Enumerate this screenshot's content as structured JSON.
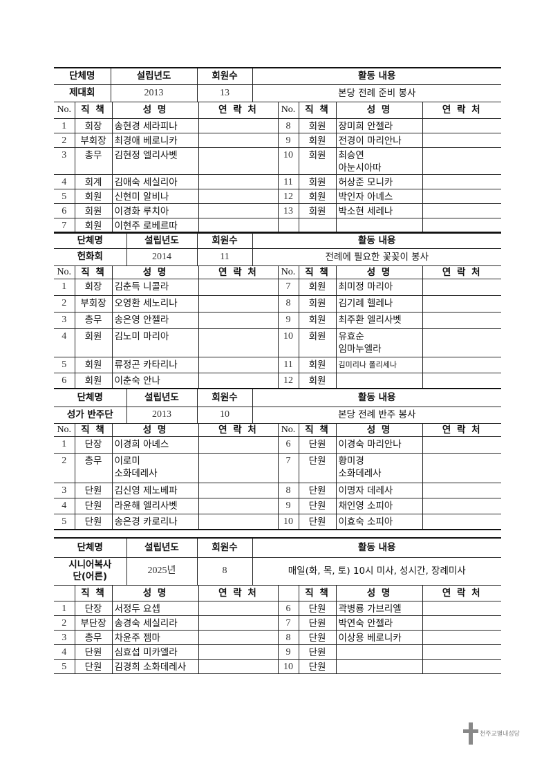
{
  "header_labels": {
    "group": "단체명",
    "founded": "설립년도",
    "members": "회원수",
    "activity": "활동 내용"
  },
  "column_labels": {
    "no": "No.",
    "role": "직 책",
    "name": "성 명",
    "contact": "연 락 처"
  },
  "groups": [
    {
      "name": "제대회",
      "founded": "2013",
      "member_count": "13",
      "activity": "본당 전례 준비 봉사",
      "show_no_header": true,
      "left": [
        {
          "no": "1",
          "role": "회장",
          "name": "송현경 세라피나"
        },
        {
          "no": "2",
          "role": "부회장",
          "name": "최경애 베로니카"
        },
        {
          "no": "3",
          "role": "총무",
          "name": "김현정 엘리사벳"
        },
        {
          "no": "4",
          "role": "회계",
          "name": "김애숙 세실리아"
        },
        {
          "no": "5",
          "role": "회원",
          "name": "신현미 알비나"
        },
        {
          "no": "6",
          "role": "회원",
          "name": "이경화 루치아"
        },
        {
          "no": "7",
          "role": "회원",
          "name": "이현주 로베르따"
        }
      ],
      "right": [
        {
          "no": "8",
          "role": "회원",
          "name": "장미희 안젤라"
        },
        {
          "no": "9",
          "role": "회원",
          "name": "전경이 마리안나"
        },
        {
          "no": "10",
          "role": "회원",
          "name": "최승연\n아눈시아따"
        },
        {
          "no": "11",
          "role": "회원",
          "name": "허상준 모니카"
        },
        {
          "no": "12",
          "role": "회원",
          "name": "박인자 아녜스"
        },
        {
          "no": "13",
          "role": "회원",
          "name": "박소현 세레나"
        },
        {
          "no": "",
          "role": "",
          "name": ""
        }
      ]
    },
    {
      "name": "헌화회",
      "founded": "2014",
      "member_count": "11",
      "activity": "전례에 필요한 꽃꽂이 봉사",
      "show_no_header": true,
      "left": [
        {
          "no": "1",
          "role": "회장",
          "name": "김춘득 니콜라"
        },
        {
          "no": "2",
          "role": "부회장",
          "name": "오영환 세노리나"
        },
        {
          "no": "3",
          "role": "총무",
          "name": "송은영 안젤라"
        },
        {
          "no": "4",
          "role": "회원",
          "name": "김노미 마리아"
        },
        {
          "no": "5",
          "role": "회원",
          "name": "류정곤 카타리나"
        },
        {
          "no": "6",
          "role": "회원",
          "name": "이춘숙 안나"
        }
      ],
      "right": [
        {
          "no": "7",
          "role": "회원",
          "name": "최미정 마리아"
        },
        {
          "no": "8",
          "role": "회원",
          "name": "김기례 헬레나"
        },
        {
          "no": "9",
          "role": "회원",
          "name": "최주환 엘리사벳"
        },
        {
          "no": "10",
          "role": "회원",
          "name": "유효순\n임마누엘라"
        },
        {
          "no": "11",
          "role": "회원",
          "name": "김미리나 폴리세나"
        },
        {
          "no": "12",
          "role": "회원",
          "name": ""
        }
      ]
    },
    {
      "name": "성가 반주단",
      "founded": "2013",
      "member_count": "10",
      "activity": "본당 전례 반주 봉사",
      "show_no_header": true,
      "left": [
        {
          "no": "1",
          "role": "단장",
          "name": "이경희 아녜스"
        },
        {
          "no": "2",
          "role": "총무",
          "name": "이로미\n소화데레사"
        },
        {
          "no": "3",
          "role": "단원",
          "name": "김신영 제노베파"
        },
        {
          "no": "4",
          "role": "단원",
          "name": "라윤해 엘리사벳"
        },
        {
          "no": "5",
          "role": "단원",
          "name": "송은경 카로리나"
        }
      ],
      "right": [
        {
          "no": "6",
          "role": "단원",
          "name": "이경숙 마리안나"
        },
        {
          "no": "7",
          "role": "단원",
          "name": "황미경\n소화데레사"
        },
        {
          "no": "8",
          "role": "단원",
          "name": "이명자 데레사"
        },
        {
          "no": "9",
          "role": "단원",
          "name": "채인영 소피아"
        },
        {
          "no": "10",
          "role": "단원",
          "name": "이효숙 소피아"
        }
      ]
    },
    {
      "name": "시니어복사\n단(어른)",
      "founded": "2025년",
      "member_count": "8",
      "activity": "매일(화, 목, 토) 10시 미사, 성시간, 장례미사",
      "show_no_header": false,
      "left": [
        {
          "no": "1",
          "role": "단장",
          "name": "서정두 요셉"
        },
        {
          "no": "2",
          "role": "부단장",
          "name": "송경숙 세실리라"
        },
        {
          "no": "3",
          "role": "총무",
          "name": "차윤주 젬마"
        },
        {
          "no": "4",
          "role": "단원",
          "name": "심효섭 미카엘라"
        },
        {
          "no": "5",
          "role": "단원",
          "name": "김경희 소화데레사"
        }
      ],
      "right": [
        {
          "no": "6",
          "role": "단원",
          "name": "곽병룡 가브리엘"
        },
        {
          "no": "7",
          "role": "단원",
          "name": "박연숙 안젤라"
        },
        {
          "no": "8",
          "role": "단원",
          "name": "이상용 베로니카"
        },
        {
          "no": "9",
          "role": "단원",
          "name": ""
        },
        {
          "no": "10",
          "role": "단원",
          "name": ""
        }
      ]
    }
  ],
  "logo": {
    "text": "천주교별내성당",
    "icon": "cross-icon"
  }
}
